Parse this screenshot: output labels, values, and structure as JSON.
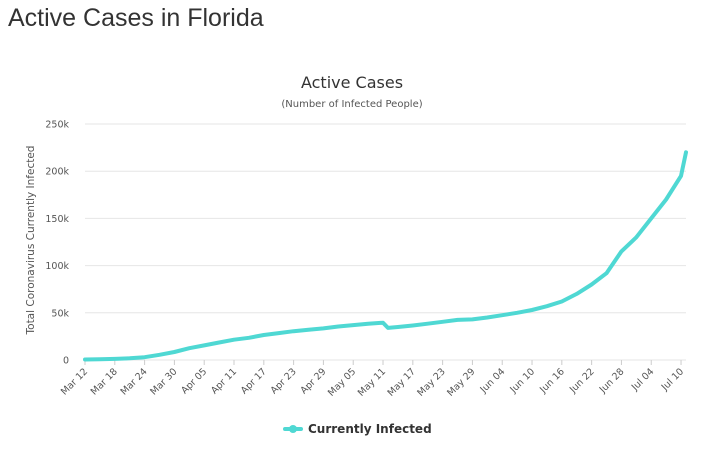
{
  "page_title": "Active Cases in Florida",
  "colors": {
    "series": "#4fd8d3",
    "grid": "#e6e6e6",
    "text": "#333333"
  },
  "chart_data": {
    "type": "line",
    "title": "Active Cases",
    "subtitle": "(Number of Infected People)",
    "ylabel": "Total Coronavirus Currently Infected",
    "xlabel": "",
    "ylim": [
      0,
      250000
    ],
    "yticks": [
      0,
      50000,
      100000,
      150000,
      200000,
      250000
    ],
    "ytick_labels": [
      "0",
      "50k",
      "100k",
      "150k",
      "200k",
      "250k"
    ],
    "x_tick_labels": [
      "Mar 12",
      "Mar 18",
      "Mar 24",
      "Mar 30",
      "Apr 05",
      "Apr 11",
      "Apr 17",
      "Apr 23",
      "Apr 29",
      "May 05",
      "May 11",
      "May 17",
      "May 23",
      "May 29",
      "Jun 04",
      "Jun 10",
      "Jun 16",
      "Jun 22",
      "Jun 28",
      "Jul 04",
      "Jul 10"
    ],
    "grid": true,
    "legend_position": "bottom",
    "series": [
      {
        "name": "Currently Infected",
        "x": [
          "Mar 12",
          "Mar 15",
          "Mar 18",
          "Mar 21",
          "Mar 24",
          "Mar 27",
          "Mar 30",
          "Apr 02",
          "Apr 05",
          "Apr 08",
          "Apr 11",
          "Apr 14",
          "Apr 17",
          "Apr 20",
          "Apr 23",
          "Apr 26",
          "Apr 29",
          "May 02",
          "May 05",
          "May 08",
          "May 11",
          "May 12",
          "May 14",
          "May 17",
          "May 20",
          "May 23",
          "May 26",
          "May 29",
          "Jun 01",
          "Jun 04",
          "Jun 07",
          "Jun 10",
          "Jun 13",
          "Jun 16",
          "Jun 19",
          "Jun 22",
          "Jun 25",
          "Jun 28",
          "Jul 01",
          "Jul 04",
          "Jul 07",
          "Jul 10",
          "Jul 11"
        ],
        "values": [
          500,
          800,
          1200,
          1800,
          3000,
          5500,
          8500,
          12500,
          15500,
          18500,
          21500,
          23500,
          26500,
          28500,
          30500,
          32000,
          33500,
          35500,
          37000,
          38500,
          39500,
          34000,
          35000,
          36500,
          38500,
          40500,
          42500,
          43000,
          45000,
          47500,
          50000,
          53000,
          57000,
          62000,
          70000,
          80000,
          92000,
          115000,
          130000,
          150000,
          170000,
          195000,
          220000
        ]
      }
    ]
  }
}
